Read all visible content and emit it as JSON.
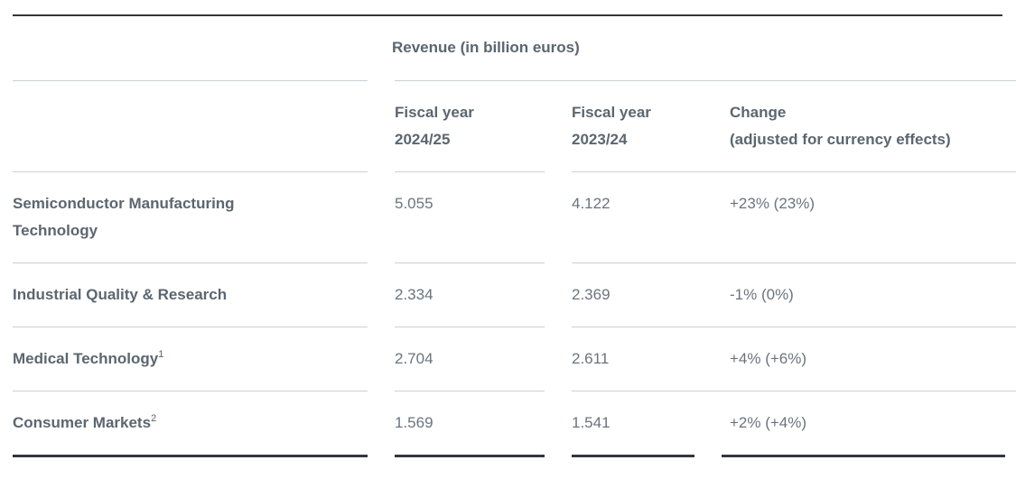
{
  "table": {
    "group_header": "Revenue (in billion euros)",
    "columns": [
      {
        "line1": "Fiscal year",
        "line2": "2024/25"
      },
      {
        "line1": "Fiscal year",
        "line2": "2023/24"
      },
      {
        "line1": "Change",
        "line2": "(adjusted for currency effects)"
      }
    ],
    "rows": [
      {
        "label_line1": "Semiconductor Manufacturing",
        "label_line2": "Technology",
        "footnote": "",
        "fy2425": "5.055",
        "fy2324": "4.122",
        "change": "+23% (23%)"
      },
      {
        "label_line1": "Industrial Quality & Research",
        "label_line2": "",
        "footnote": "",
        "fy2425": "2.334",
        "fy2324": "2.369",
        "change": "-1% (0%)"
      },
      {
        "label_line1": "Medical Technology",
        "label_line2": "",
        "footnote": "1",
        "fy2425": "2.704",
        "fy2324": "2.611",
        "change": "+4% (+6%)"
      },
      {
        "label_line1": "Consumer Markets",
        "label_line2": "",
        "footnote": "2",
        "fy2425": "1.569",
        "fy2324": "1.541",
        "change": "+2% (+4%)"
      }
    ]
  }
}
